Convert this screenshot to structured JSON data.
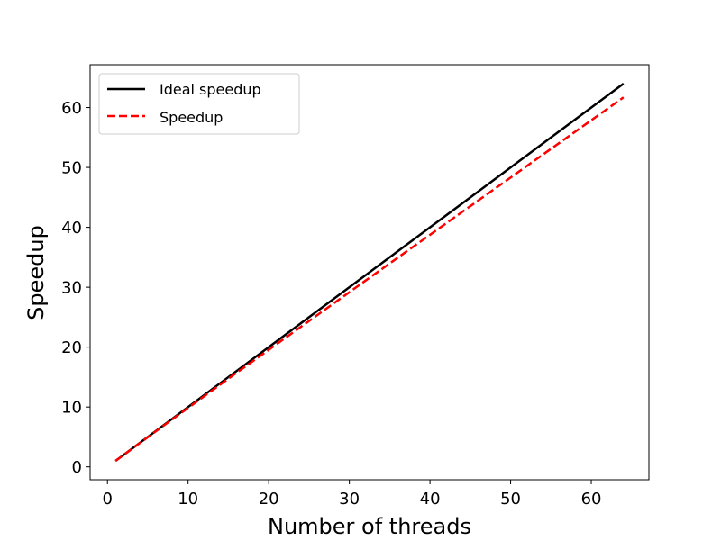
{
  "chart_data": {
    "type": "line",
    "xlabel": "Number of threads",
    "ylabel": "Speedup",
    "xlim": [
      -2.15,
      67.15
    ],
    "ylim": [
      -2.15,
      67.15
    ],
    "xticks": [
      0,
      10,
      20,
      30,
      40,
      50,
      60
    ],
    "yticks": [
      0,
      10,
      20,
      30,
      40,
      50,
      60
    ],
    "grid": false,
    "legend_position": "top-left",
    "series": [
      {
        "name": "Ideal speedup",
        "color": "#000000",
        "style": "solid",
        "x": [
          1,
          64
        ],
        "y": [
          1,
          64
        ]
      },
      {
        "name": "Speedup",
        "color": "#ff0000",
        "style": "dashed",
        "x": [
          1,
          2,
          4,
          8,
          16,
          32,
          64
        ],
        "y": [
          1,
          1.99,
          3.97,
          7.9,
          15.7,
          31.1,
          61.7
        ]
      }
    ]
  }
}
